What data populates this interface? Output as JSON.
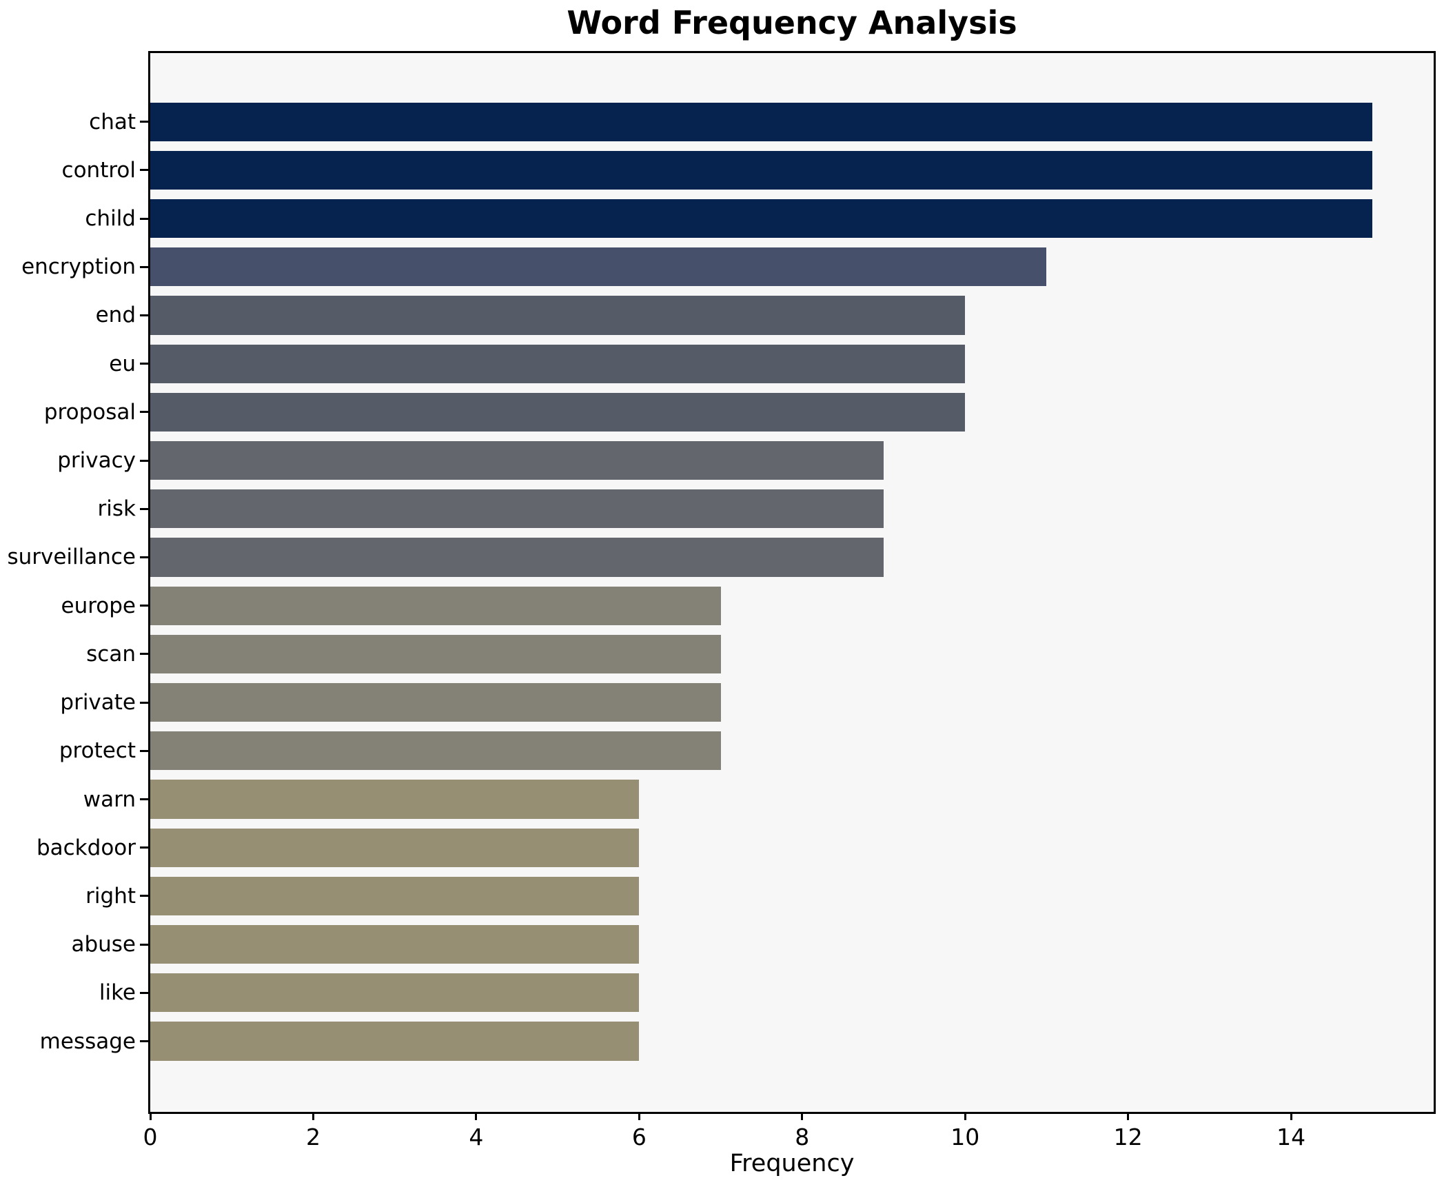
{
  "chart_data": {
    "type": "bar",
    "orientation": "horizontal",
    "title": "Word Frequency Analysis",
    "xlabel": "Frequency",
    "ylabel": "",
    "categories": [
      "chat",
      "control",
      "child",
      "encryption",
      "end",
      "eu",
      "proposal",
      "privacy",
      "risk",
      "surveillance",
      "europe",
      "scan",
      "private",
      "protect",
      "warn",
      "backdoor",
      "right",
      "abuse",
      "like",
      "message"
    ],
    "values": [
      15,
      15,
      15,
      11,
      10,
      10,
      10,
      9,
      9,
      9,
      7,
      7,
      7,
      7,
      6,
      6,
      6,
      6,
      6,
      6
    ],
    "bar_colors": [
      "#05234e",
      "#05234e",
      "#05234e",
      "#47506a",
      "#565b68",
      "#565b68",
      "#565b68",
      "#64666e",
      "#64666e",
      "#64666e",
      "#848177",
      "#848177",
      "#848177",
      "#848177",
      "#968f73",
      "#968f73",
      "#968f73",
      "#968f73",
      "#968f73",
      "#968f73"
    ],
    "xticks": [
      0,
      2,
      4,
      6,
      8,
      10,
      12,
      14
    ],
    "xlim": [
      0,
      15.75
    ],
    "grid": false,
    "legend": null,
    "plot_background": "#f7f7f8",
    "figure_background": "#ffffff",
    "axis_color": "#000000"
  }
}
